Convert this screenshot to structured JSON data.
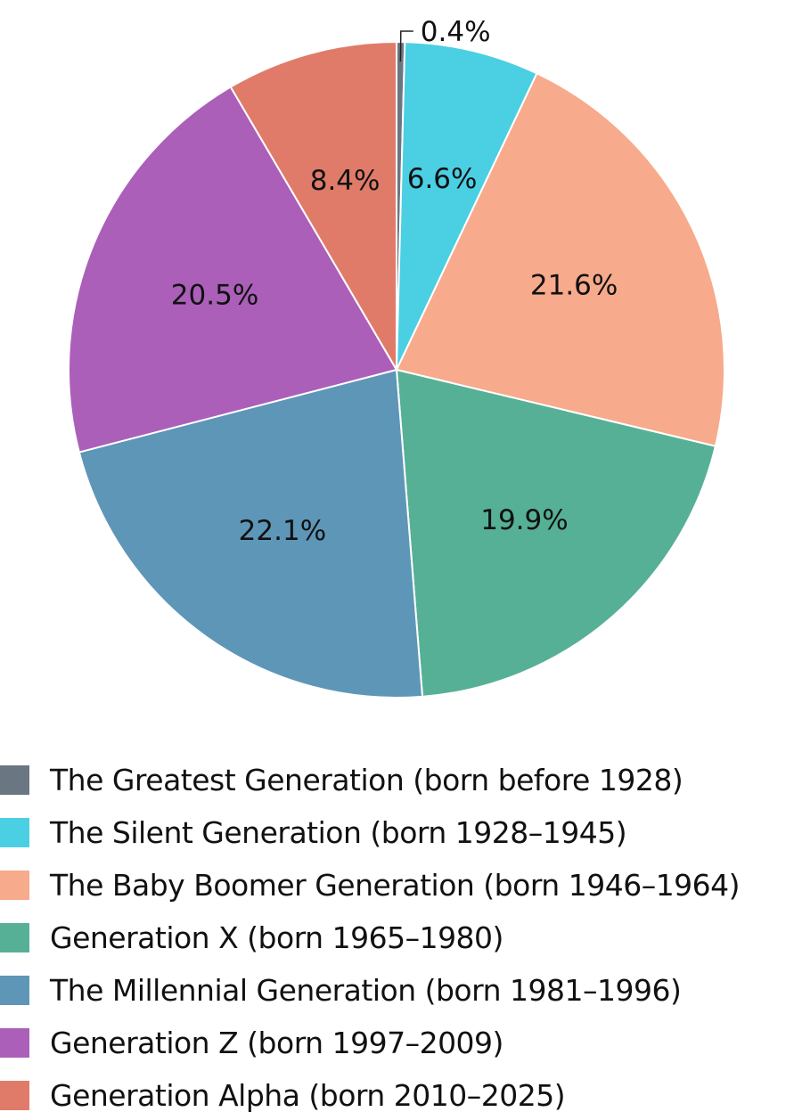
{
  "chart_data": {
    "type": "pie",
    "title": "",
    "slices": [
      {
        "label": "The Greatest Generation (born before 1928)",
        "value": 0.4,
        "display": "0.4%",
        "color": "#6b7683"
      },
      {
        "label": "The Silent Generation (born 1928–1945)",
        "value": 6.6,
        "display": "6.6%",
        "color": "#4bcfe3"
      },
      {
        "label": "The Baby Boomer Generation (born 1946–1964)",
        "value": 21.6,
        "display": "21.6%",
        "color": "#f7aa8c"
      },
      {
        "label": "Generation X (born 1965–1980)",
        "value": 19.9,
        "display": "19.9%",
        "color": "#56b096"
      },
      {
        "label": "The Millennial Generation (born 1981–1996)",
        "value": 22.1,
        "display": "22.1%",
        "color": "#5e96b8"
      },
      {
        "label": "Generation Z (born 1997–2009)",
        "value": 20.5,
        "display": "20.5%",
        "color": "#ab5fb9"
      },
      {
        "label": "Generation Alpha (born 2010–2025)",
        "value": 8.4,
        "display": "8.4%",
        "color": "#e07b6a"
      }
    ],
    "legend_position": "bottom-left"
  }
}
